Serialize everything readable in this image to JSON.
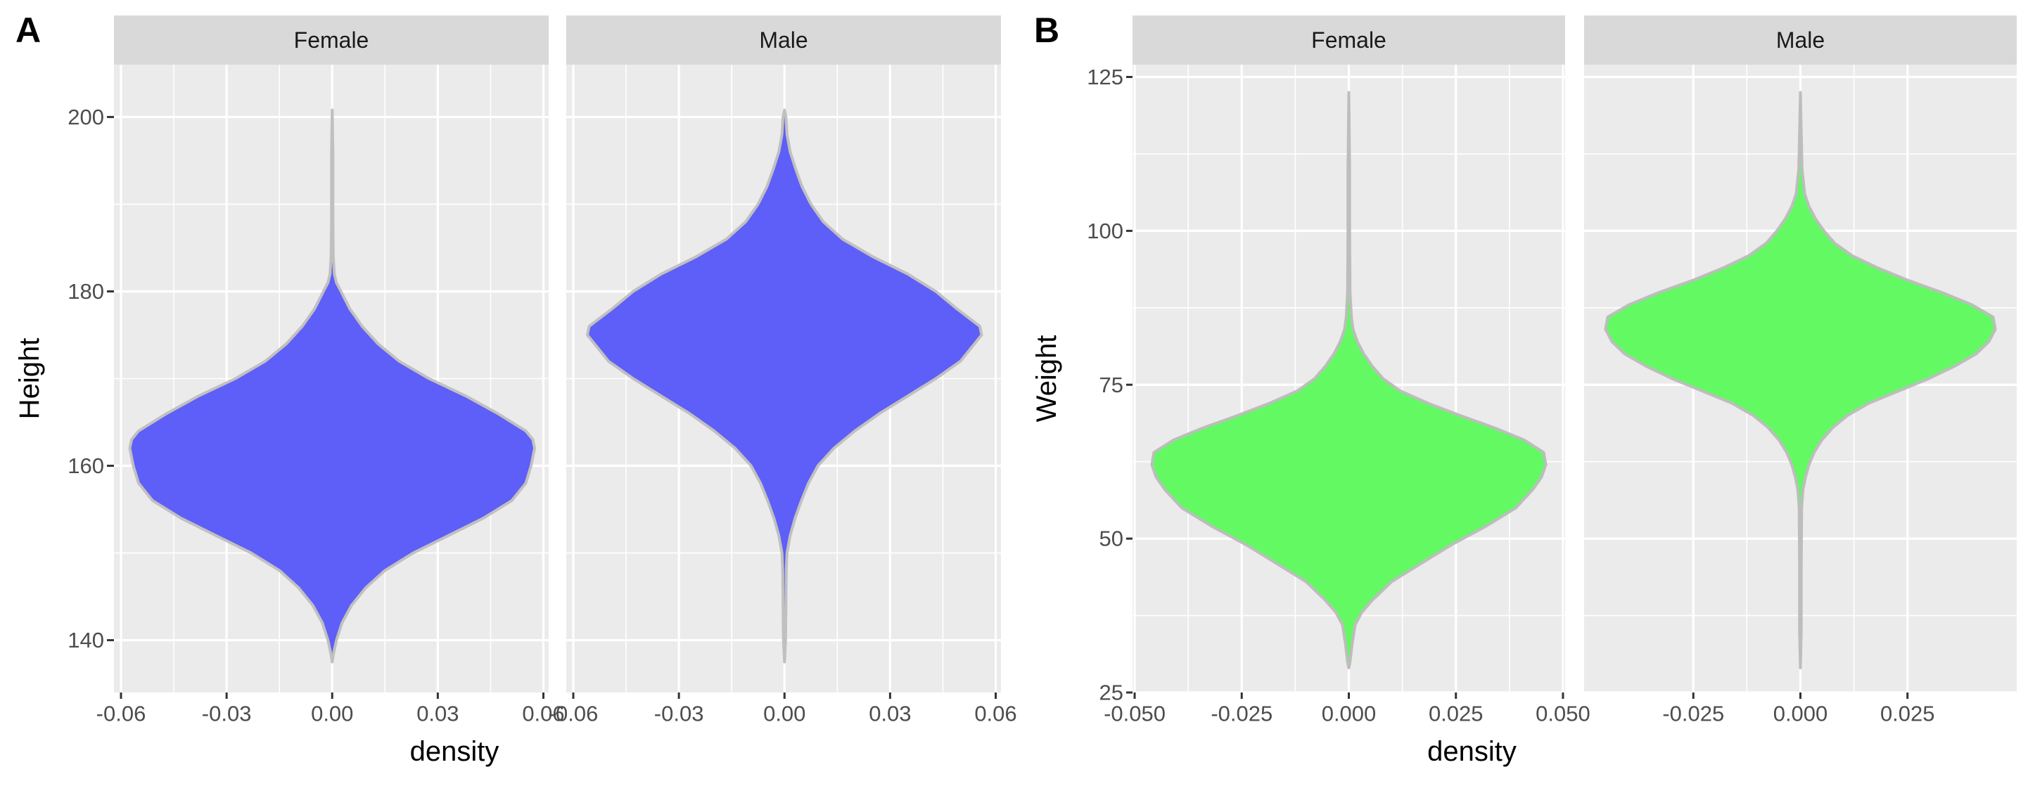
{
  "chart_data": [
    {
      "type": "violin",
      "panel_label": "A",
      "xlabel": "density",
      "ylabel": "Height",
      "ylim": [
        134,
        206
      ],
      "yticks": [
        140,
        160,
        180,
        200
      ],
      "fill": "#5e5ef8",
      "outline": "#c0c0c0",
      "facets": [
        {
          "name": "Female",
          "xlim": [
            -0.062,
            0.0615
          ],
          "xticks": [
            -0.06,
            -0.03,
            0.0,
            0.03,
            0.06
          ],
          "xtick_labels": [
            "-0.06",
            "-0.03",
            "0.00",
            "0.03",
            "0.06"
          ],
          "profile": [
            [
              137.5,
              0.0
            ],
            [
              138.5,
              0.0004
            ],
            [
              140,
              0.0012
            ],
            [
              142,
              0.0028
            ],
            [
              144,
              0.0055
            ],
            [
              146,
              0.0095
            ],
            [
              148,
              0.015
            ],
            [
              150,
              0.023
            ],
            [
              152,
              0.033
            ],
            [
              154,
              0.043
            ],
            [
              156,
              0.051
            ],
            [
              158,
              0.055
            ],
            [
              160,
              0.0565
            ],
            [
              162,
              0.0575
            ],
            [
              163,
              0.057
            ],
            [
              164,
              0.055
            ],
            [
              166,
              0.047
            ],
            [
              168,
              0.038
            ],
            [
              170,
              0.0275
            ],
            [
              172,
              0.019
            ],
            [
              174,
              0.013
            ],
            [
              176,
              0.0085
            ],
            [
              178,
              0.005
            ],
            [
              180,
              0.0025
            ],
            [
              181,
              0.0012
            ],
            [
              182,
              0.0006
            ],
            [
              184,
              0.0003
            ],
            [
              188,
              0.0002
            ],
            [
              192,
              0.0002
            ],
            [
              196,
              0.0002
            ],
            [
              200.8,
              0.0
            ]
          ]
        },
        {
          "name": "Male",
          "xlim": [
            -0.062,
            0.0615
          ],
          "xticks": [
            -0.06,
            -0.03,
            0.0,
            0.03,
            0.06
          ],
          "xtick_labels": [
            "-0.06",
            "-0.03",
            "0.00",
            "0.03",
            "0.06"
          ],
          "profile": [
            [
              137.5,
              0.0
            ],
            [
              140,
              0.0003
            ],
            [
              144,
              0.0004
            ],
            [
              148,
              0.0005
            ],
            [
              150,
              0.0007
            ],
            [
              152,
              0.0016
            ],
            [
              154,
              0.003
            ],
            [
              156,
              0.0048
            ],
            [
              158,
              0.0068
            ],
            [
              160,
              0.0095
            ],
            [
              162,
              0.014
            ],
            [
              164,
              0.02
            ],
            [
              166,
              0.027
            ],
            [
              168,
              0.035
            ],
            [
              170,
              0.043
            ],
            [
              172,
              0.05
            ],
            [
              174,
              0.054
            ],
            [
              175,
              0.056
            ],
            [
              176,
              0.0555
            ],
            [
              178,
              0.049
            ],
            [
              180,
              0.043
            ],
            [
              182,
              0.035
            ],
            [
              184,
              0.025
            ],
            [
              186,
              0.0165
            ],
            [
              188,
              0.011
            ],
            [
              190,
              0.0075
            ],
            [
              192,
              0.005
            ],
            [
              194,
              0.0032
            ],
            [
              196,
              0.0016
            ],
            [
              198,
              0.0007
            ],
            [
              200,
              0.0004
            ],
            [
              200.8,
              0.0
            ]
          ]
        }
      ]
    },
    {
      "type": "violin",
      "panel_label": "B",
      "xlabel": "density",
      "ylabel": "Weight",
      "ylim": [
        25,
        127
      ],
      "yticks": [
        25,
        50,
        75,
        100,
        125
      ],
      "fill": "#62f962",
      "outline": "#bdbdbd",
      "facets": [
        {
          "name": "Female",
          "xlim": [
            -0.0505,
            0.0505
          ],
          "xticks": [
            -0.05,
            -0.025,
            0.0,
            0.025,
            0.05
          ],
          "xtick_labels": [
            "-0.050",
            "-0.025",
            "0.000",
            "0.025",
            "0.050"
          ],
          "profile": [
            [
              29,
              0.0
            ],
            [
              30,
              0.0003
            ],
            [
              33,
              0.0008
            ],
            [
              36,
              0.0015
            ],
            [
              38,
              0.003
            ],
            [
              40,
              0.0055
            ],
            [
              43,
              0.01
            ],
            [
              46,
              0.017
            ],
            [
              49,
              0.024
            ],
            [
              52,
              0.032
            ],
            [
              55,
              0.039
            ],
            [
              58,
              0.043
            ],
            [
              60,
              0.045
            ],
            [
              62,
              0.046
            ],
            [
              64,
              0.0455
            ],
            [
              66,
              0.041
            ],
            [
              68,
              0.034
            ],
            [
              70,
              0.026
            ],
            [
              72,
              0.0185
            ],
            [
              74,
              0.012
            ],
            [
              76,
              0.008
            ],
            [
              78,
              0.0055
            ],
            [
              80,
              0.0035
            ],
            [
              82,
              0.002
            ],
            [
              84,
              0.001
            ],
            [
              86,
              0.0006
            ],
            [
              90,
              0.0003
            ],
            [
              100,
              0.0002
            ],
            [
              110,
              0.0002
            ],
            [
              122.5,
              0.0
            ]
          ]
        },
        {
          "name": "Male",
          "xlim": [
            -0.0505,
            0.0505
          ],
          "xticks": [
            -0.025,
            0.0,
            0.025
          ],
          "xtick_labels": [
            "-0.025",
            "0.000",
            "0.025"
          ],
          "profile": [
            [
              29,
              0.0
            ],
            [
              35,
              0.0002
            ],
            [
              45,
              0.0002
            ],
            [
              55,
              0.0003
            ],
            [
              58,
              0.0006
            ],
            [
              60,
              0.0012
            ],
            [
              62,
              0.002
            ],
            [
              64,
              0.0032
            ],
            [
              66,
              0.005
            ],
            [
              68,
              0.0075
            ],
            [
              70,
              0.011
            ],
            [
              72,
              0.016
            ],
            [
              74,
              0.023
            ],
            [
              76,
              0.03
            ],
            [
              78,
              0.036
            ],
            [
              80,
              0.041
            ],
            [
              82,
              0.044
            ],
            [
              84,
              0.0455
            ],
            [
              86,
              0.045
            ],
            [
              88,
              0.04
            ],
            [
              90,
              0.033
            ],
            [
              92,
              0.025
            ],
            [
              94,
              0.018
            ],
            [
              96,
              0.012
            ],
            [
              98,
              0.008
            ],
            [
              100,
              0.0055
            ],
            [
              102,
              0.0035
            ],
            [
              104,
              0.002
            ],
            [
              106,
              0.001
            ],
            [
              110,
              0.0004
            ],
            [
              116,
              0.0002
            ],
            [
              122.5,
              0.0
            ]
          ]
        }
      ]
    }
  ]
}
